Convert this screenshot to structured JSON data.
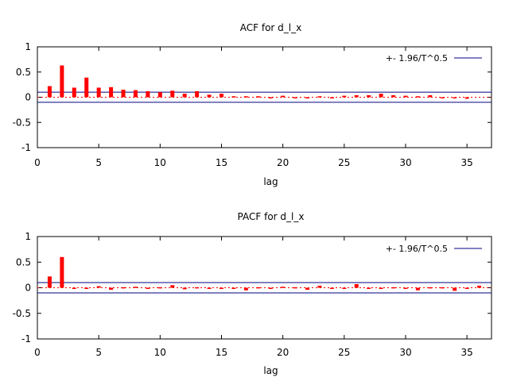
{
  "chart_data": [
    {
      "type": "bar",
      "title": "ACF for d_l_x",
      "xlabel": "lag",
      "ylabel": "",
      "xlim": [
        0,
        37
      ],
      "ylim": [
        -1,
        1
      ],
      "x_ticks": [
        "0",
        "5",
        "10",
        "15",
        "20",
        "25",
        "30",
        "35"
      ],
      "y_ticks": [
        "1",
        "0.5",
        "0",
        "-0.5",
        "-1"
      ],
      "grid": false,
      "legend": {
        "position": "top-right",
        "entries": [
          "+- 1.96/T^0.5"
        ]
      },
      "bounds": 0.1,
      "bar_color": "#ff0000",
      "bound_color": "#000080",
      "lags": [
        1,
        2,
        3,
        4,
        5,
        6,
        7,
        8,
        9,
        10,
        11,
        12,
        13,
        14,
        15,
        16,
        17,
        18,
        19,
        20,
        21,
        22,
        23,
        24,
        25,
        26,
        27,
        28,
        29,
        30,
        31,
        32,
        33,
        34,
        35
      ],
      "values": [
        0.22,
        0.63,
        0.19,
        0.39,
        0.19,
        0.2,
        0.15,
        0.14,
        0.12,
        0.1,
        0.13,
        0.07,
        0.12,
        0.05,
        0.07,
        0.02,
        0.02,
        0.02,
        0.0,
        0.03,
        0.0,
        -0.01,
        0.02,
        0.0,
        0.03,
        0.04,
        0.04,
        0.07,
        0.04,
        0.03,
        0.02,
        0.04,
        -0.01,
        -0.01,
        -0.03
      ]
    },
    {
      "type": "bar",
      "title": "PACF for d_l_x",
      "xlabel": "lag",
      "ylabel": "",
      "xlim": [
        0,
        37
      ],
      "ylim": [
        -1,
        1
      ],
      "x_ticks": [
        "0",
        "5",
        "10",
        "15",
        "20",
        "25",
        "30",
        "35"
      ],
      "y_ticks": [
        "1",
        "0.5",
        "0",
        "-0.5",
        "-1"
      ],
      "grid": false,
      "legend": {
        "position": "top-right",
        "entries": [
          "+- 1.96/T^0.5"
        ]
      },
      "bounds": 0.1,
      "bar_color": "#ff0000",
      "bound_color": "#000080",
      "lags": [
        1,
        2,
        3,
        4,
        5,
        6,
        7,
        8,
        9,
        10,
        11,
        12,
        13,
        14,
        15,
        16,
        17,
        18,
        19,
        20,
        21,
        22,
        23,
        24,
        25,
        26,
        27,
        28,
        29,
        30,
        31,
        32,
        33,
        34,
        35,
        36
      ],
      "values": [
        0.22,
        0.6,
        0.0,
        -0.01,
        0.03,
        -0.04,
        0.01,
        0.02,
        0.0,
        0.01,
        0.05,
        -0.03,
        0.01,
        0.0,
        -0.01,
        0.0,
        -0.05,
        0.01,
        0.0,
        0.02,
        0.01,
        -0.04,
        0.04,
        -0.01,
        0.0,
        0.07,
        -0.01,
        0.0,
        0.01,
        -0.02,
        -0.05,
        0.01,
        0.01,
        -0.06,
        -0.01,
        0.04
      ]
    }
  ]
}
